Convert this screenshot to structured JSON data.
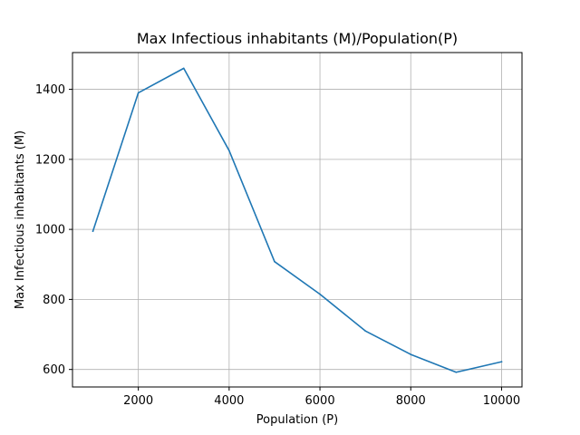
{
  "chart_data": {
    "type": "line",
    "title": "Max Infectious inhabitants (M)/Population(P)",
    "xlabel": "Population (P)",
    "ylabel": "Max Infectious inhabitants (M)",
    "x": [
      1000,
      2000,
      3000,
      4000,
      5000,
      6000,
      7000,
      8000,
      9000,
      10000
    ],
    "series": [
      {
        "values": [
          995,
          1390,
          1460,
          1225,
          908,
          815,
          710,
          643,
          592,
          622
        ],
        "color": "#1f77b4"
      }
    ],
    "xlim": [
      550,
      10450
    ],
    "ylim": [
      550,
      1505
    ],
    "xticks": [
      2000,
      4000,
      6000,
      8000,
      10000
    ],
    "yticks": [
      600,
      800,
      1000,
      1200,
      1400
    ],
    "grid": true,
    "legend": "none"
  }
}
